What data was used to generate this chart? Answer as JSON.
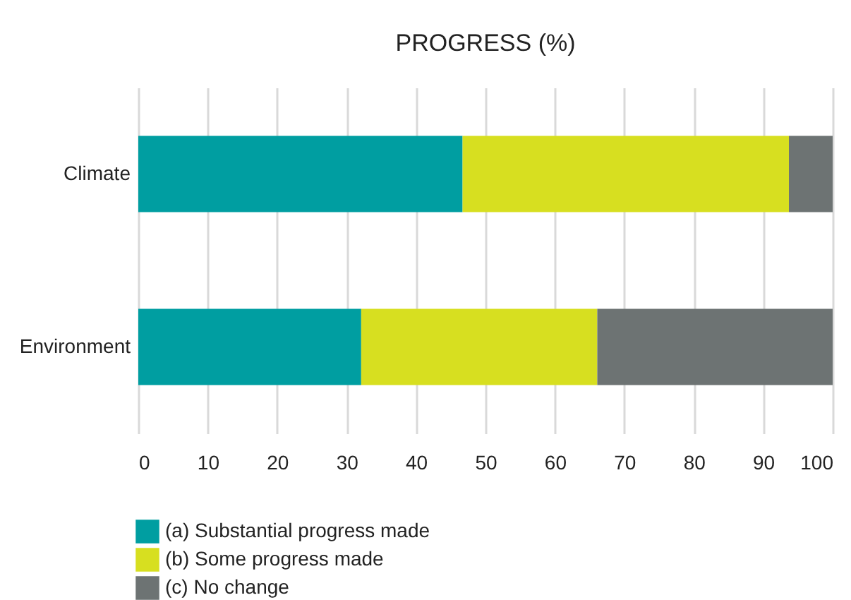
{
  "chart_data": {
    "type": "bar",
    "title": "PROGRESS (%)",
    "orientation": "horizontal",
    "stacked": true,
    "categories": [
      "Climate",
      "Environment"
    ],
    "series": [
      {
        "name": "(a) Substantial progress made",
        "color": "#009ea1",
        "values": [
          46.7,
          32.1
        ]
      },
      {
        "name": "(b) Some progress made",
        "color": "#d7df20",
        "values": [
          47.0,
          34.0
        ]
      },
      {
        "name": "(c) No change",
        "color": "#6d7373",
        "values": [
          6.3,
          33.9
        ]
      }
    ],
    "xlim": [
      0,
      100
    ],
    "xticks": [
      0,
      10,
      20,
      30,
      40,
      50,
      60,
      70,
      80,
      90,
      100
    ],
    "grid": "x",
    "legend": "bottom left"
  }
}
